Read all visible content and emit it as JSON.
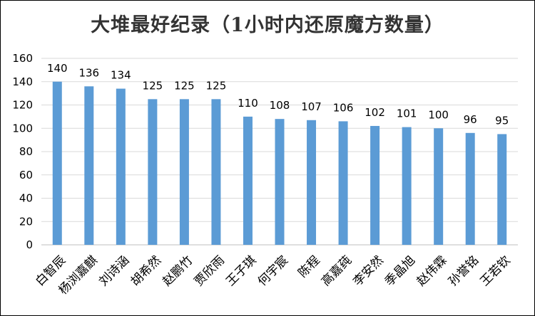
{
  "chart_data": {
    "type": "bar",
    "title": "大堆最好纪录（1小时内还原魔方数量）",
    "categories": [
      "白智辰",
      "杨浏嘉麒",
      "刘诗涵",
      "胡希然",
      "赵鹏竹",
      "贾欣雨",
      "王子琪",
      "何宇宸",
      "陈程",
      "高嘉莼",
      "李安然",
      "季晶旭",
      "赵伟霖",
      "孙誉铭",
      "王若钦"
    ],
    "values": [
      140,
      136,
      134,
      125,
      125,
      125,
      110,
      108,
      107,
      106,
      102,
      101,
      100,
      96,
      95
    ],
    "ylim": [
      0,
      160
    ],
    "yticks": [
      0,
      20,
      40,
      60,
      80,
      100,
      120,
      140,
      160
    ],
    "grid": true,
    "legend": "none",
    "colors": {
      "bar": "#5B9BD5",
      "grid": "#D9D9D9",
      "axis": "#BFBFBF"
    }
  }
}
